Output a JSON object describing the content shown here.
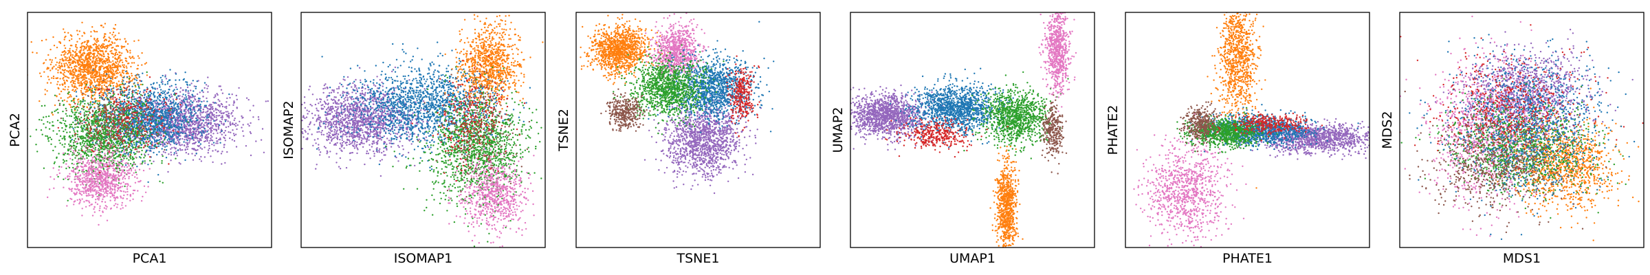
{
  "figure": {
    "background": "#ffffff"
  },
  "chart_data": [
    {
      "type": "scatter",
      "xlabel": "PCA1",
      "ylabel": "PCA2",
      "xlim": [
        -1,
        1
      ],
      "ylim": [
        -1,
        1
      ],
      "grid": false,
      "clusters": [
        {
          "color": "#ff7f0e",
          "cx": -0.46,
          "cy": 0.53,
          "sx": 0.17,
          "sy": 0.14,
          "n": 1300
        },
        {
          "color": "#9467bd",
          "cx": 0.28,
          "cy": 0.06,
          "sx": 0.22,
          "sy": 0.13,
          "n": 1400
        },
        {
          "color": "#1f77b4",
          "cx": -0.02,
          "cy": 0.1,
          "sx": 0.22,
          "sy": 0.14,
          "n": 1400
        },
        {
          "color": "#2ca02c",
          "cx": -0.38,
          "cy": -0.05,
          "sx": 0.2,
          "sy": 0.17,
          "n": 1200
        },
        {
          "color": "#e377c2",
          "cx": -0.4,
          "cy": -0.42,
          "sx": 0.14,
          "sy": 0.12,
          "n": 800
        },
        {
          "color": "#8c564b",
          "cx": -0.3,
          "cy": 0.05,
          "sx": 0.16,
          "sy": 0.14,
          "n": 250
        },
        {
          "color": "#d62728",
          "cx": -0.2,
          "cy": 0.1,
          "sx": 0.18,
          "sy": 0.14,
          "n": 250
        }
      ]
    },
    {
      "type": "scatter",
      "xlabel": "ISOMAP1",
      "ylabel": "ISOMAP2",
      "xlim": [
        -1,
        1
      ],
      "ylim": [
        -1,
        1
      ],
      "grid": false,
      "clusters": [
        {
          "color": "#9467bd",
          "cx": -0.52,
          "cy": 0.08,
          "sx": 0.22,
          "sy": 0.14,
          "n": 1400
        },
        {
          "color": "#1f77b4",
          "cx": 0.0,
          "cy": 0.2,
          "sx": 0.3,
          "sy": 0.17,
          "n": 1500
        },
        {
          "color": "#ff7f0e",
          "cx": 0.55,
          "cy": 0.55,
          "sx": 0.12,
          "sy": 0.16,
          "n": 900
        },
        {
          "color": "#2ca02c",
          "cx": 0.45,
          "cy": -0.15,
          "sx": 0.2,
          "sy": 0.22,
          "n": 1300
        },
        {
          "color": "#e377c2",
          "cx": 0.58,
          "cy": -0.55,
          "sx": 0.13,
          "sy": 0.15,
          "n": 700
        },
        {
          "color": "#8c564b",
          "cx": 0.45,
          "cy": 0.0,
          "sx": 0.15,
          "sy": 0.2,
          "n": 250
        },
        {
          "color": "#d62728",
          "cx": 0.4,
          "cy": 0.1,
          "sx": 0.15,
          "sy": 0.18,
          "n": 250
        }
      ]
    },
    {
      "type": "scatter",
      "xlabel": "TSNE1",
      "ylabel": "TSNE2",
      "xlim": [
        -1,
        1
      ],
      "ylim": [
        -1,
        1
      ],
      "grid": false,
      "clusters": [
        {
          "color": "#ff7f0e",
          "cx": -0.65,
          "cy": 0.68,
          "sx": 0.12,
          "sy": 0.1,
          "n": 1100
        },
        {
          "color": "#e377c2",
          "cx": -0.18,
          "cy": 0.67,
          "sx": 0.09,
          "sy": 0.11,
          "n": 800
        },
        {
          "color": "#9467bd",
          "cx": 0.05,
          "cy": -0.08,
          "sx": 0.15,
          "sy": 0.15,
          "n": 1300
        },
        {
          "color": "#1f77b4",
          "cx": 0.12,
          "cy": 0.35,
          "sx": 0.16,
          "sy": 0.13,
          "n": 1200
        },
        {
          "color": "#2ca02c",
          "cx": -0.25,
          "cy": 0.35,
          "sx": 0.15,
          "sy": 0.12,
          "n": 1100
        },
        {
          "color": "#8c564b",
          "cx": -0.6,
          "cy": 0.15,
          "sx": 0.07,
          "sy": 0.07,
          "n": 350
        },
        {
          "color": "#d62728",
          "cx": 0.36,
          "cy": 0.3,
          "sx": 0.05,
          "sy": 0.12,
          "n": 300
        }
      ]
    },
    {
      "type": "scatter",
      "xlabel": "UMAP1",
      "ylabel": "UMAP2",
      "xlim": [
        -1,
        1
      ],
      "ylim": [
        -1,
        1
      ],
      "grid": false,
      "clusters": [
        {
          "color": "#9467bd",
          "cx": -0.7,
          "cy": 0.12,
          "sx": 0.15,
          "sy": 0.09,
          "n": 1300
        },
        {
          "color": "#1f77b4",
          "cx": -0.15,
          "cy": 0.18,
          "sx": 0.18,
          "sy": 0.1,
          "n": 1300
        },
        {
          "color": "#2ca02c",
          "cx": 0.35,
          "cy": 0.12,
          "sx": 0.13,
          "sy": 0.11,
          "n": 1000
        },
        {
          "color": "#ff7f0e",
          "cx": 0.28,
          "cy": -0.65,
          "sx": 0.04,
          "sy": 0.18,
          "n": 800
        },
        {
          "color": "#e377c2",
          "cx": 0.7,
          "cy": 0.7,
          "sx": 0.05,
          "sy": 0.18,
          "n": 700
        },
        {
          "color": "#8c564b",
          "cx": 0.66,
          "cy": 0.0,
          "sx": 0.04,
          "sy": 0.12,
          "n": 300
        },
        {
          "color": "#d62728",
          "cx": -0.3,
          "cy": -0.05,
          "sx": 0.14,
          "sy": 0.06,
          "n": 350
        }
      ]
    },
    {
      "type": "scatter",
      "xlabel": "PHATE1",
      "ylabel": "PHATE2",
      "xlim": [
        -1,
        1
      ],
      "ylim": [
        -1,
        1
      ],
      "grid": false,
      "clusters": [
        {
          "color": "#ff7f0e",
          "cx": -0.08,
          "cy": 0.62,
          "sx": 0.08,
          "sy": 0.25,
          "n": 900
        },
        {
          "color": "#e377c2",
          "cx": -0.5,
          "cy": -0.52,
          "sx": 0.16,
          "sy": 0.2,
          "n": 900
        },
        {
          "color": "#9467bd",
          "cx": 0.55,
          "cy": -0.07,
          "sx": 0.22,
          "sy": 0.06,
          "n": 1200
        },
        {
          "color": "#1f77b4",
          "cx": 0.1,
          "cy": 0.0,
          "sx": 0.2,
          "sy": 0.06,
          "n": 1100
        },
        {
          "color": "#2ca02c",
          "cx": -0.18,
          "cy": -0.02,
          "sx": 0.14,
          "sy": 0.06,
          "n": 900
        },
        {
          "color": "#8c564b",
          "cx": -0.38,
          "cy": 0.05,
          "sx": 0.07,
          "sy": 0.07,
          "n": 350
        },
        {
          "color": "#d62728",
          "cx": 0.18,
          "cy": 0.05,
          "sx": 0.16,
          "sy": 0.04,
          "n": 300
        }
      ]
    },
    {
      "type": "scatter",
      "xlabel": "MDS1",
      "ylabel": "MDS2",
      "xlim": [
        -1,
        1
      ],
      "ylim": [
        -1,
        1
      ],
      "grid": false,
      "clusters": [
        {
          "color": "#e377c2",
          "cx": -0.3,
          "cy": 0.0,
          "sx": 0.22,
          "sy": 0.3,
          "n": 1000
        },
        {
          "color": "#9467bd",
          "cx": 0.05,
          "cy": 0.3,
          "sx": 0.25,
          "sy": 0.18,
          "n": 1100
        },
        {
          "color": "#ff7f0e",
          "cx": 0.35,
          "cy": -0.3,
          "sx": 0.2,
          "sy": 0.18,
          "n": 1000
        },
        {
          "color": "#2ca02c",
          "cx": 0.0,
          "cy": -0.15,
          "sx": 0.28,
          "sy": 0.18,
          "n": 1000
        },
        {
          "color": "#1f77b4",
          "cx": 0.05,
          "cy": 0.05,
          "sx": 0.3,
          "sy": 0.3,
          "n": 1100
        },
        {
          "color": "#8c564b",
          "cx": -0.2,
          "cy": -0.3,
          "sx": 0.28,
          "sy": 0.2,
          "n": 600
        },
        {
          "color": "#d62728",
          "cx": -0.1,
          "cy": 0.2,
          "sx": 0.28,
          "sy": 0.22,
          "n": 500
        }
      ]
    }
  ]
}
